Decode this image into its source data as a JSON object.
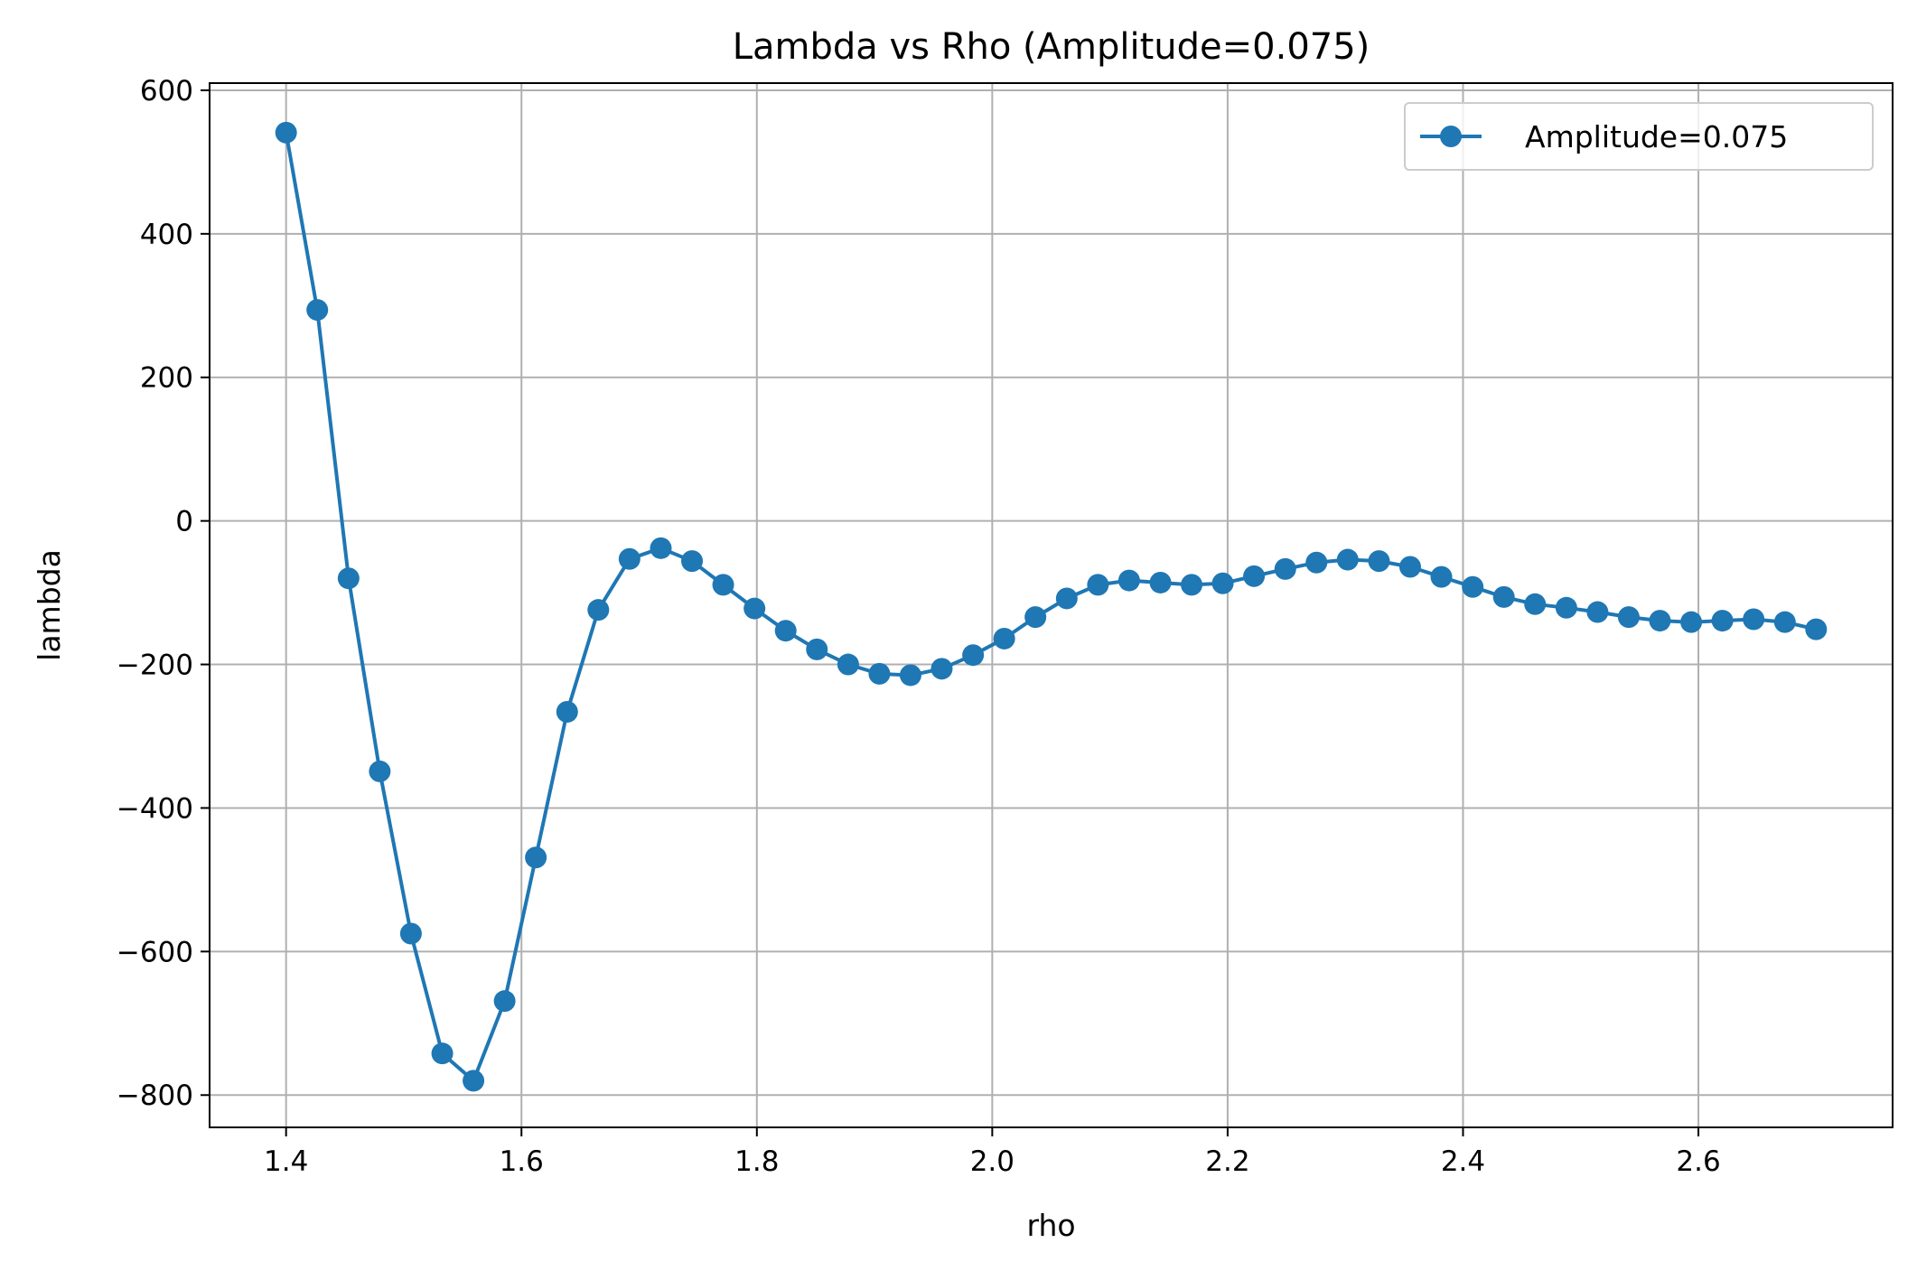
{
  "chart_data": {
    "type": "line",
    "title": "Lambda vs Rho (Amplitude=0.075)",
    "xlabel": "rho",
    "ylabel": "lambda",
    "xlim": [
      1.335,
      2.765
    ],
    "ylim": [
      -845,
      610
    ],
    "xticks": [
      1.4,
      1.6,
      1.8,
      2.0,
      2.2,
      2.4,
      2.6
    ],
    "xtick_labels": [
      "1.4",
      "1.6",
      "1.8",
      "2.0",
      "2.2",
      "2.4",
      "2.6"
    ],
    "yticks": [
      600,
      400,
      200,
      0,
      -200,
      -400,
      -600,
      -800
    ],
    "ytick_labels": [
      "600",
      "400",
      "200",
      "0",
      "−200",
      "−400",
      "−600",
      "−800"
    ],
    "grid": true,
    "legend_position": "top-right",
    "series": [
      {
        "name": "Amplitude=0.075",
        "color": "#1f77b4",
        "marker": "circle",
        "x": [
          1.4,
          1.4265,
          1.4531,
          1.4796,
          1.5061,
          1.5327,
          1.5592,
          1.5857,
          1.6122,
          1.6388,
          1.6653,
          1.6918,
          1.7184,
          1.7449,
          1.7714,
          1.798,
          1.8245,
          1.851,
          1.8776,
          1.9041,
          1.9306,
          1.9571,
          1.9837,
          2.0102,
          2.0367,
          2.0633,
          2.0898,
          2.1163,
          2.1429,
          2.1694,
          2.1959,
          2.2224,
          2.249,
          2.2755,
          2.302,
          2.3286,
          2.3551,
          2.3816,
          2.4082,
          2.4347,
          2.4612,
          2.4878,
          2.5143,
          2.5408,
          2.5673,
          2.5939,
          2.6204,
          2.6469,
          2.6735,
          2.7
        ],
        "y": [
          541,
          294,
          -80,
          -349,
          -575,
          -742,
          -780,
          -669,
          -469,
          -266,
          -124,
          -53,
          -38,
          -56,
          -89,
          -122,
          -153,
          -179,
          -200,
          -213,
          -215,
          -206,
          -187,
          -164,
          -134,
          -108,
          -89,
          -83,
          -86,
          -89,
          -87,
          -77,
          -67,
          -58,
          -54,
          -56,
          -64,
          -78,
          -92,
          -106,
          -116,
          -121,
          -127,
          -134,
          -139,
          -141,
          -139,
          -137,
          -141,
          -151
        ]
      }
    ]
  }
}
